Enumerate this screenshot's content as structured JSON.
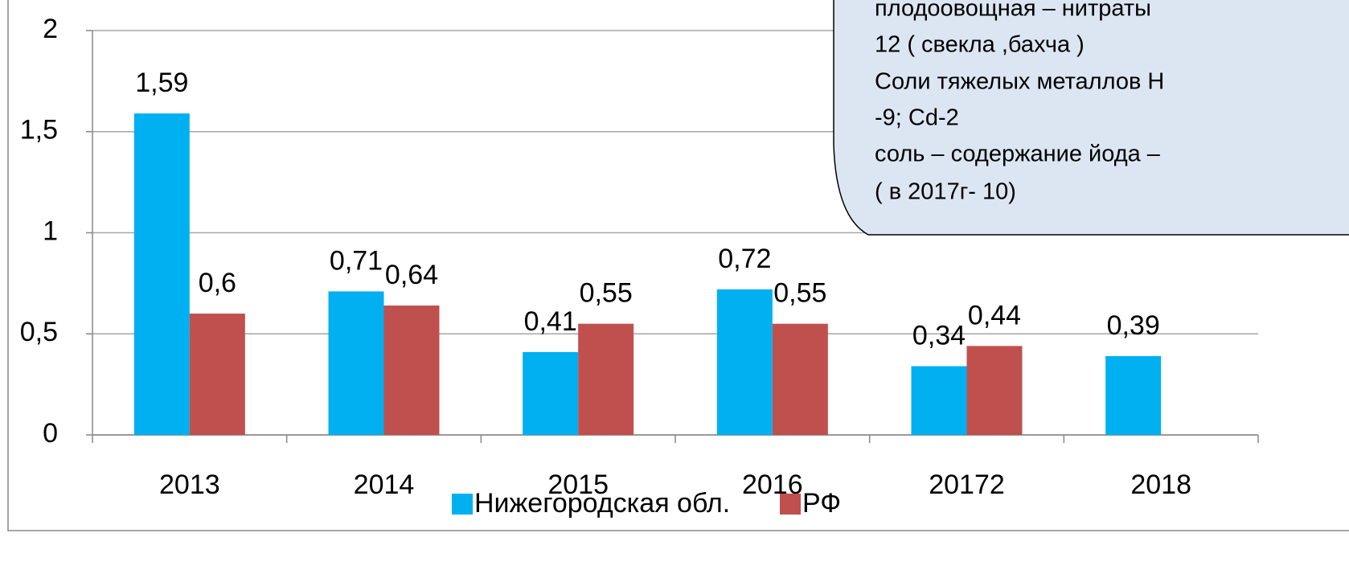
{
  "chart_data": {
    "type": "bar",
    "categories": [
      "2013",
      "2014",
      "2015",
      "2016",
      "20172",
      "2018"
    ],
    "series": [
      {
        "name": "Нижегородская обл.",
        "color": "#00b0f0",
        "values": [
          1.59,
          0.71,
          0.41,
          0.72,
          0.34,
          0.39
        ],
        "value_labels": [
          "1,59",
          "0,71",
          "0,41",
          "0,72",
          "0,34",
          "0,39"
        ]
      },
      {
        "name": "РФ",
        "color": "#c0504d",
        "values": [
          0.6,
          0.64,
          0.55,
          0.55,
          0.44,
          null
        ],
        "value_labels": [
          "0,6",
          "0,64",
          "0,55",
          "0,55",
          "0,44",
          null
        ]
      }
    ],
    "ylim": [
      0,
      2
    ],
    "yticks": [
      0,
      {
        "value": 0.5,
        "label": "0,5"
      },
      1,
      {
        "value": 1.5,
        "label": "1,5"
      },
      2
    ],
    "grid": true,
    "legend": "bottom",
    "annotation_lines": [
      "плодоовощная – нитраты",
      "12 ( свекла ,бахча )",
      "Соли тяжелых металлов Н",
      "-9; Cd-2",
      "соль – содержание йода –",
      "( в 2017г- 10)"
    ]
  }
}
